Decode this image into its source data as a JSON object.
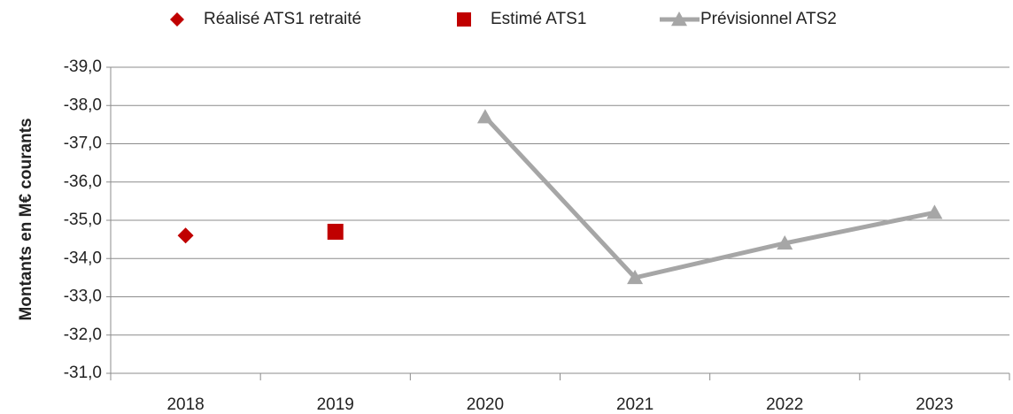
{
  "chart_data": {
    "type": "line",
    "y_label": "Montants en M€ courants",
    "categories": [
      "2018",
      "2019",
      "2020",
      "2021",
      "2022",
      "2023"
    ],
    "series": [
      {
        "name": "Réalisé ATS1 retraité",
        "color": "#c00000",
        "marker": "diamond",
        "line": false,
        "values": [
          -34.6,
          null,
          null,
          null,
          null,
          null
        ]
      },
      {
        "name": "Estimé ATS1",
        "color": "#c00000",
        "marker": "square",
        "line": false,
        "values": [
          null,
          -34.7,
          null,
          null,
          null,
          null
        ]
      },
      {
        "name": "Prévisionnel ATS2",
        "color": "#a6a6a6",
        "marker": "triangle",
        "line": true,
        "values": [
          null,
          null,
          -37.7,
          -33.5,
          -34.4,
          -35.2
        ]
      }
    ],
    "ylim": [
      -39,
      -31
    ],
    "y_reversed": true,
    "yticks": [
      {
        "value": -39,
        "label": "-39,0"
      },
      {
        "value": -38,
        "label": "-38,0"
      },
      {
        "value": -37,
        "label": "-37,0"
      },
      {
        "value": -36,
        "label": "-36,0"
      },
      {
        "value": -35,
        "label": "-35,0"
      },
      {
        "value": -34,
        "label": "-34,0"
      },
      {
        "value": -33,
        "label": "-33,0"
      },
      {
        "value": -32,
        "label": "-32,0"
      },
      {
        "value": -31,
        "label": "-31,0"
      }
    ],
    "grid": true,
    "legend": "top"
  }
}
